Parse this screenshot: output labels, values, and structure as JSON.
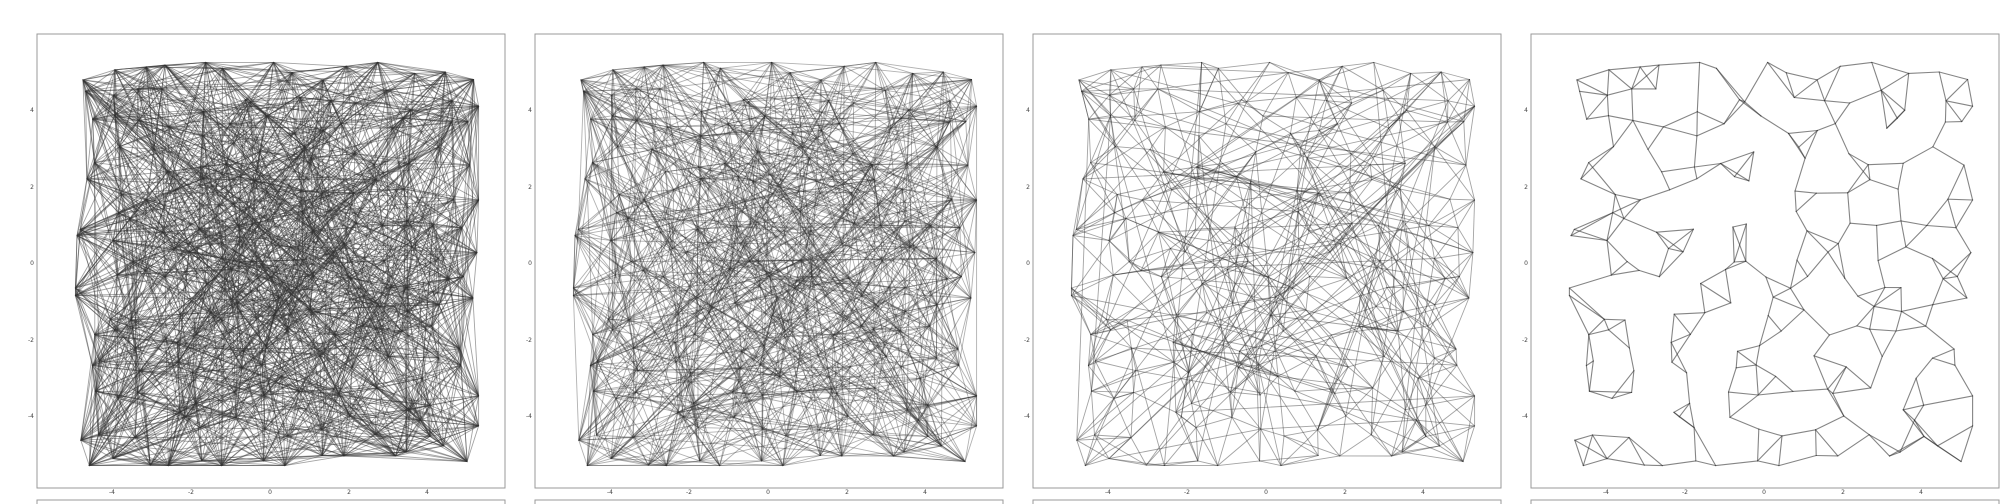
{
  "figure": {
    "background": "#ffffff",
    "frame_color": "#999999",
    "edge_color": "#333333"
  },
  "chart_data": [
    {
      "type": "network",
      "panel": 1,
      "density": "very-dense",
      "edge_opacity": 0.45,
      "xlim": [
        -5.5,
        6.0
      ],
      "ylim": [
        -6.0,
        6.0
      ],
      "xticks": [
        "-4",
        "-2",
        "0",
        "2",
        "4"
      ],
      "yticks": [
        "4",
        "2",
        "0",
        "-2",
        "-4"
      ],
      "grid": false,
      "legend": "none"
    },
    {
      "type": "network",
      "panel": 2,
      "density": "dense",
      "edge_opacity": 0.38,
      "xlim": [
        -5.5,
        6.0
      ],
      "ylim": [
        -6.0,
        6.0
      ],
      "xticks": [
        "-4",
        "-2",
        "0",
        "2",
        "4"
      ],
      "yticks": [
        "4",
        "2",
        "0",
        "-2",
        "-4"
      ],
      "grid": false,
      "legend": "none"
    },
    {
      "type": "network",
      "panel": 3,
      "density": "medium",
      "edge_opacity": 0.45,
      "xlim": [
        -5.5,
        6.0
      ],
      "ylim": [
        -6.0,
        6.0
      ],
      "xticks": [
        "-4",
        "-2",
        "0",
        "2",
        "4"
      ],
      "yticks": [
        "4",
        "2",
        "0",
        "-2",
        "-4"
      ],
      "grid": false,
      "legend": "none"
    },
    {
      "type": "network",
      "panel": 4,
      "density": "sparse",
      "edge_opacity": 0.6,
      "xlim": [
        -5.5,
        6.0
      ],
      "ylim": [
        -6.0,
        6.0
      ],
      "xticks": [
        "-4",
        "-2",
        "0",
        "2",
        "4"
      ],
      "yticks": [
        "4",
        "2",
        "0",
        "-2",
        "-4"
      ],
      "grid": false,
      "legend": "none"
    }
  ]
}
